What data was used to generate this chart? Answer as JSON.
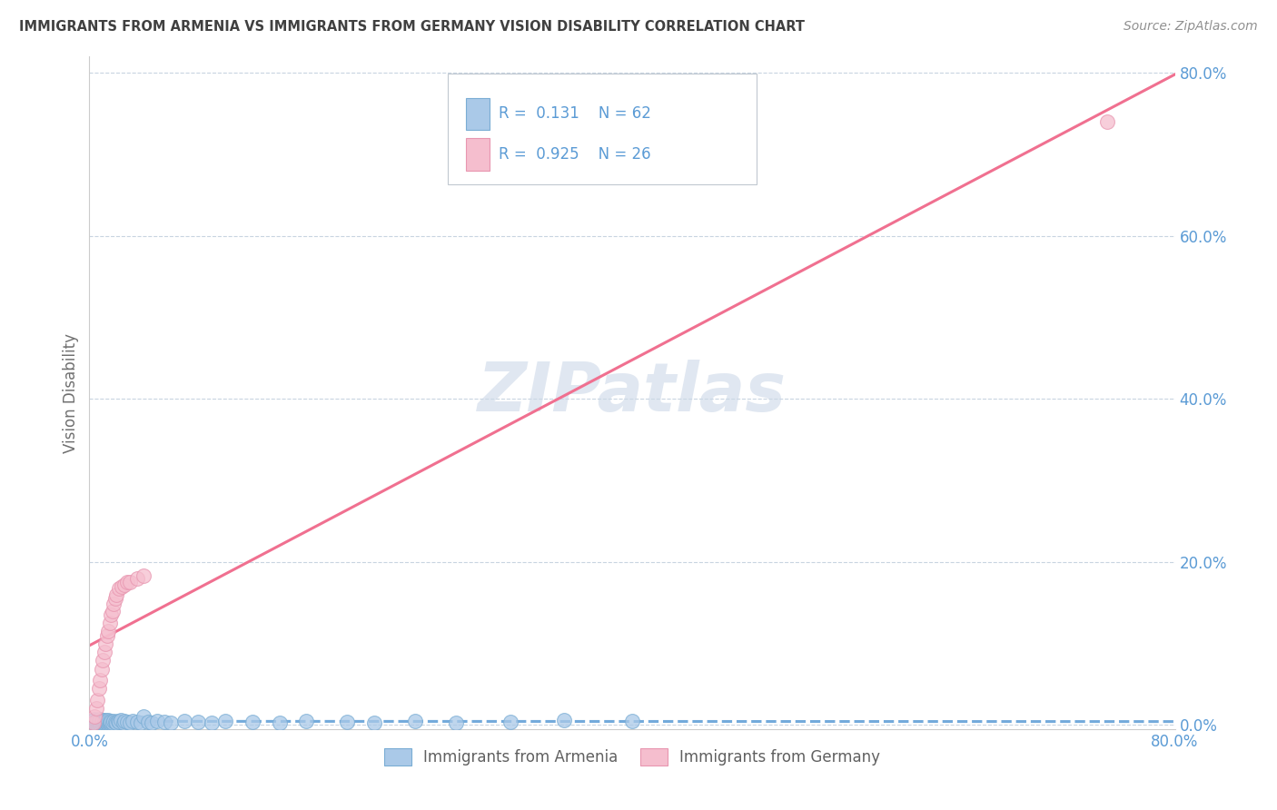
{
  "title": "IMMIGRANTS FROM ARMENIA VS IMMIGRANTS FROM GERMANY VISION DISABILITY CORRELATION CHART",
  "source": "Source: ZipAtlas.com",
  "ylabel": "Vision Disability",
  "y_tick_labels": [
    "0.0%",
    "20.0%",
    "40.0%",
    "60.0%",
    "80.0%"
  ],
  "y_tick_values": [
    0.0,
    0.2,
    0.4,
    0.6,
    0.8
  ],
  "xlim": [
    0.0,
    0.8
  ],
  "ylim": [
    -0.005,
    0.82
  ],
  "armenia_color": "#aac9e8",
  "armenia_edge_color": "#7aadd4",
  "germany_color": "#f5bece",
  "germany_edge_color": "#e896b0",
  "armenia_R": 0.131,
  "armenia_N": 62,
  "germany_R": 0.925,
  "germany_N": 26,
  "armenia_line_color": "#5b9bd5",
  "germany_line_color": "#f07090",
  "legend_label_armenia": "Immigrants from Armenia",
  "legend_label_germany": "Immigrants from Germany",
  "watermark": "ZIPatlas",
  "title_color": "#404040",
  "source_color": "#909090",
  "tick_color": "#5b9bd5",
  "grid_color": "#c8d4e0",
  "background_color": "#ffffff"
}
